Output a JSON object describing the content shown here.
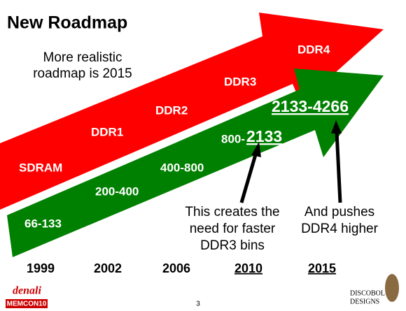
{
  "header": {
    "title": "New Roadmap",
    "note": [
      "More realistic",
      "roadmap is 2015"
    ]
  },
  "red_arrow": {
    "labels": [
      "SDRAM",
      "DDR1",
      "DDR2",
      "DDR3",
      "DDR4"
    ]
  },
  "green_arrow": {
    "labels": [
      "66-133",
      "200-400",
      "400-800"
    ],
    "label_prefix": "800-",
    "label_highlight": "2133",
    "head_label": "2133-4266"
  },
  "annotations": [
    [
      "This creates the",
      "need for faster",
      "DDR3 bins"
    ],
    [
      "And pushes",
      "DDR4 higher"
    ]
  ],
  "years": [
    "1999",
    "2002",
    "2006",
    "2010",
    "2015"
  ],
  "footer": {
    "logo_left": "denali",
    "logo_left_badge": "MEMCON10",
    "page": "3",
    "logo_right": [
      "DISCOBOLUS",
      "DESIGNS"
    ]
  }
}
